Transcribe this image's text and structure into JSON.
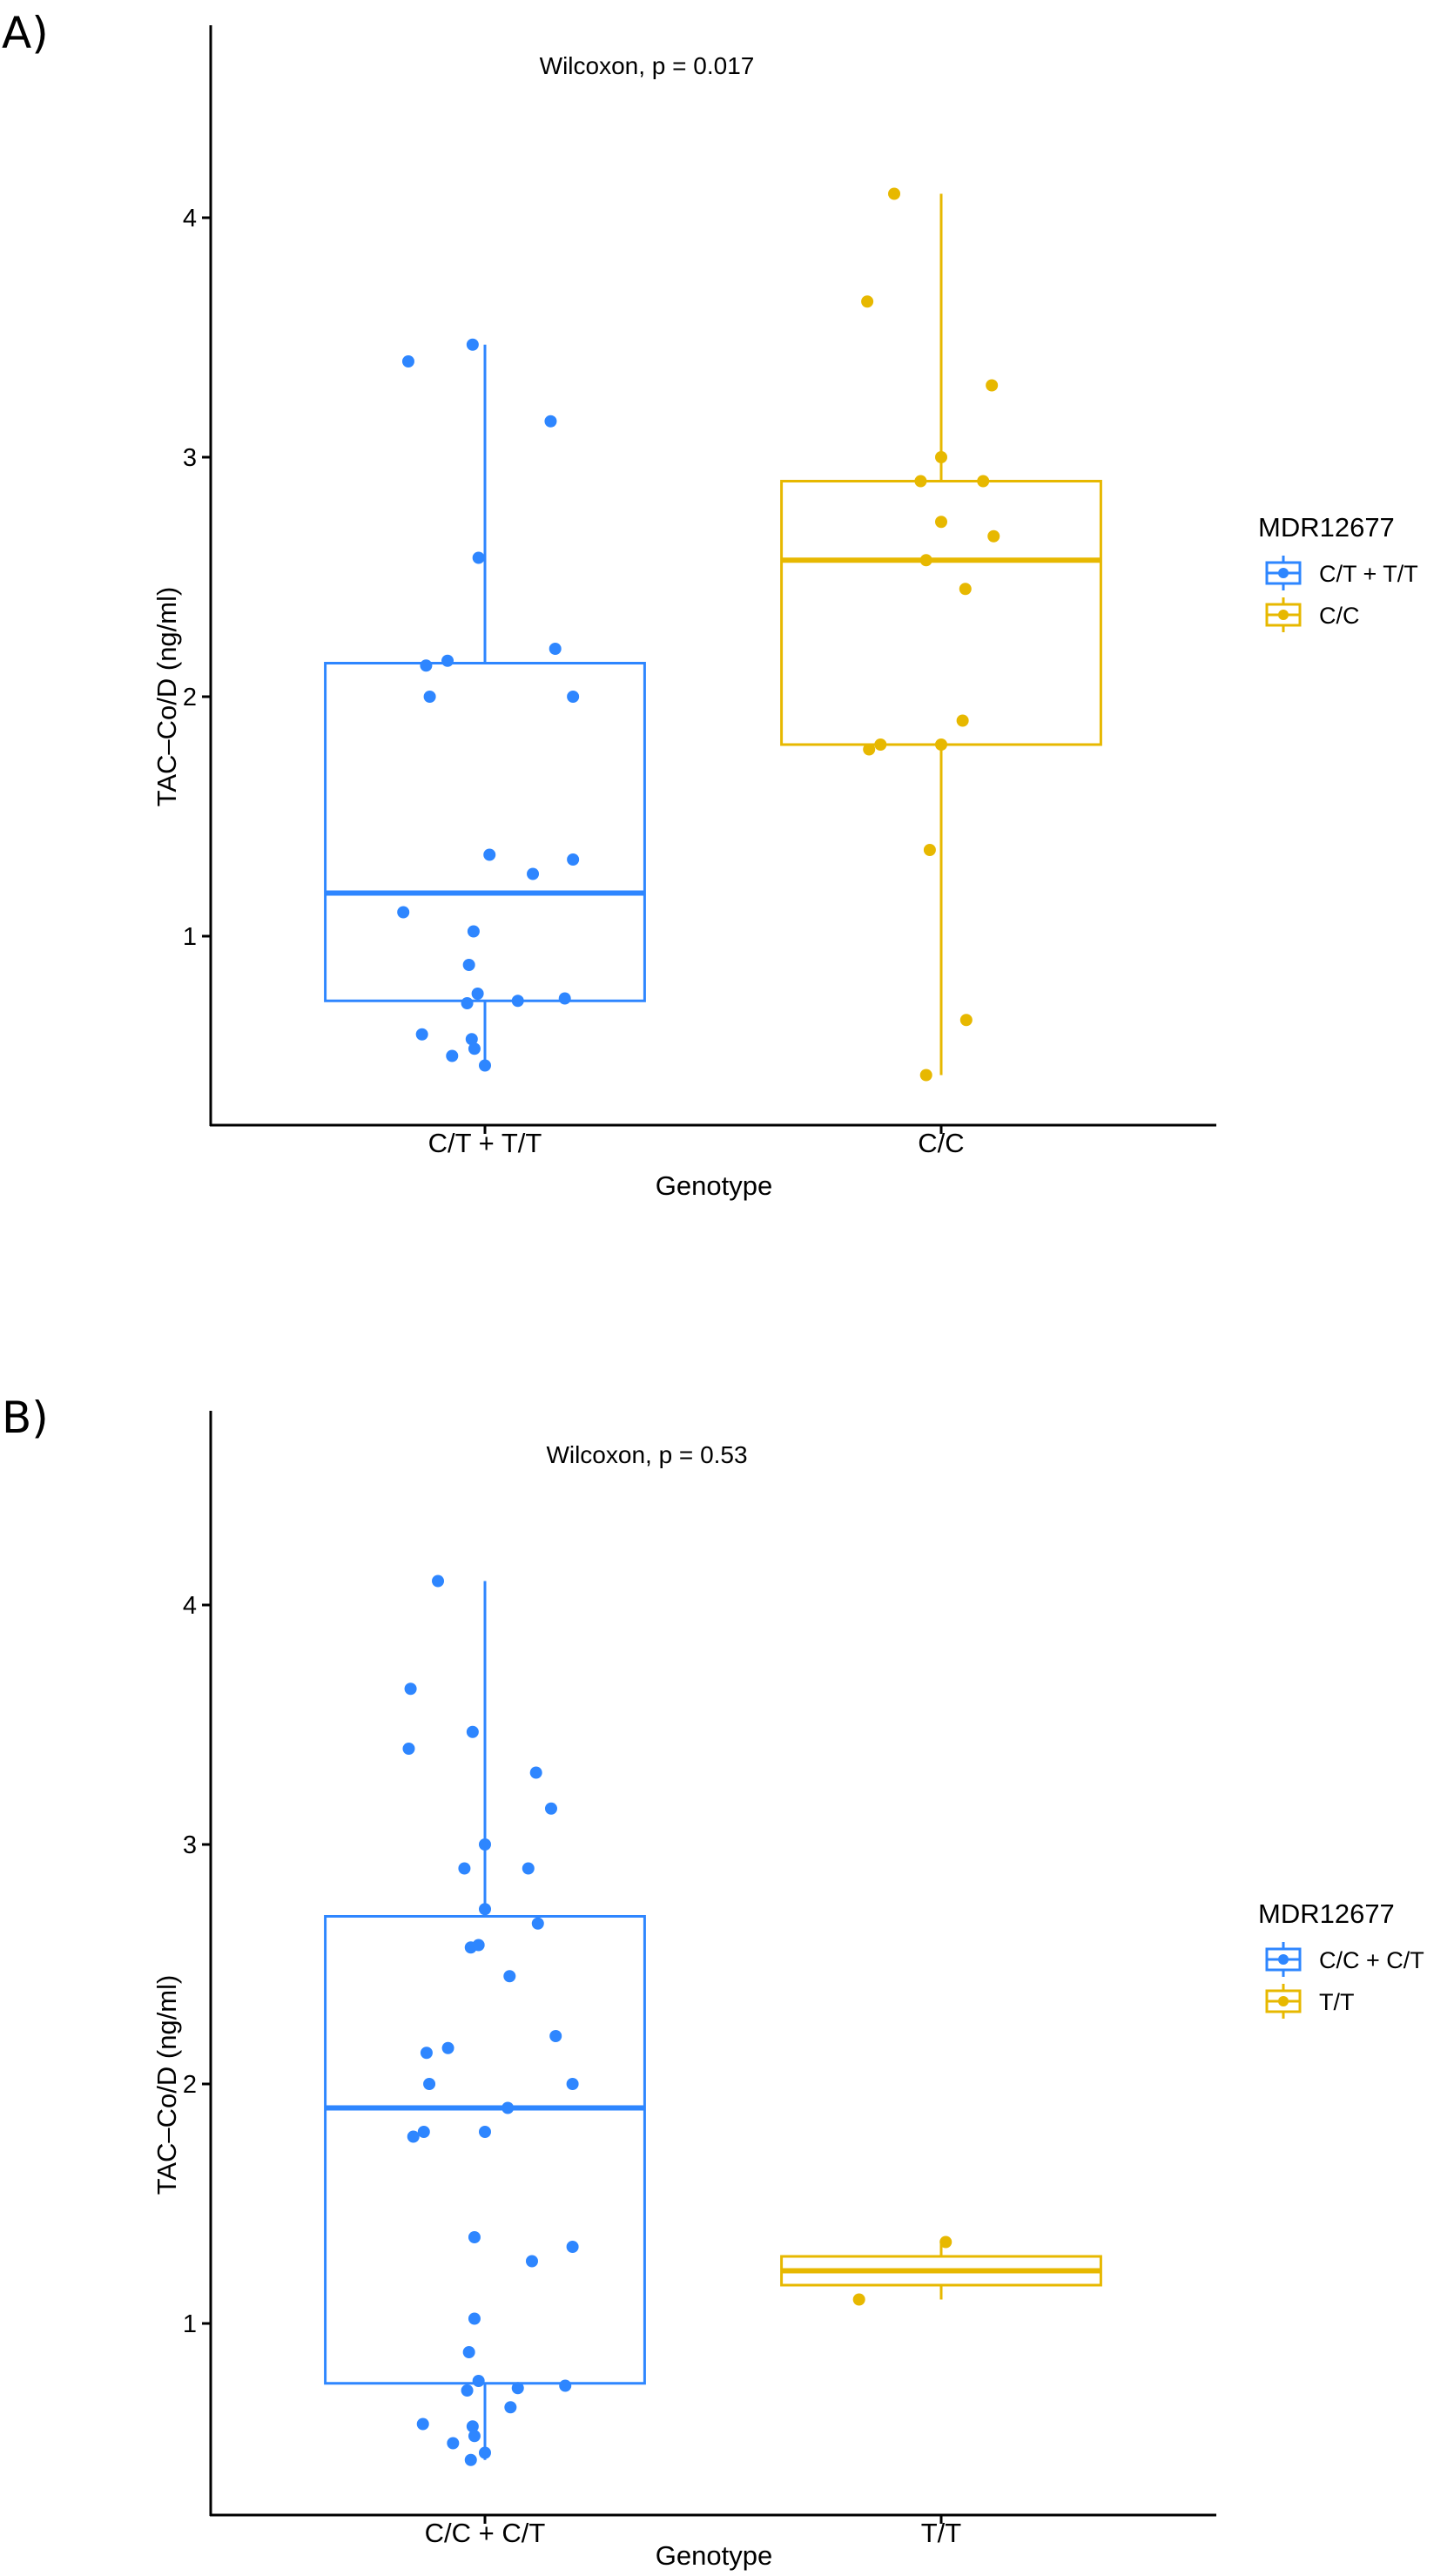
{
  "colors": {
    "blue": "#2E86FF",
    "yellow": "#E7B800",
    "axis": "#000000"
  },
  "chart_data": [
    {
      "type": "box",
      "panel_label": "A)",
      "annotation": "Wilcoxon, p = 0.017",
      "xlabel": "Genotype",
      "ylabel": "TAC–Co/D (ng/ml)",
      "ylim": [
        0.2,
        4.8
      ],
      "yticks": [
        1,
        2,
        3,
        4
      ],
      "grid": false,
      "legend": {
        "title": "MDR12677",
        "position": "right"
      },
      "categories": [
        "C/T + T/T",
        "C/C"
      ],
      "groups": [
        {
          "name": "C/T + T/T",
          "color": "blue",
          "box": {
            "lower_whisker": 0.46,
            "q1": 0.73,
            "median": 1.18,
            "q3": 2.14,
            "upper_whisker": 3.47
          },
          "points": [
            [
              -0.168,
              3.4
            ],
            [
              -0.027,
              3.47
            ],
            [
              0.144,
              3.15
            ],
            [
              -0.014,
              2.58
            ],
            [
              0.154,
              2.2
            ],
            [
              -0.129,
              2.13
            ],
            [
              -0.082,
              2.15
            ],
            [
              -0.121,
              2.0
            ],
            [
              0.193,
              2.0
            ],
            [
              0.01,
              1.34
            ],
            [
              0.105,
              1.26
            ],
            [
              0.193,
              1.32
            ],
            [
              -0.179,
              1.1
            ],
            [
              -0.025,
              1.02
            ],
            [
              -0.035,
              0.88
            ],
            [
              -0.016,
              0.76
            ],
            [
              -0.039,
              0.72
            ],
            [
              0.072,
              0.73
            ],
            [
              0.175,
              0.74
            ],
            [
              -0.138,
              0.59
            ],
            [
              -0.029,
              0.57
            ],
            [
              -0.023,
              0.53
            ],
            [
              -0.072,
              0.5
            ],
            [
              0.0,
              0.46
            ]
          ]
        },
        {
          "name": "C/C",
          "color": "yellow",
          "box": {
            "lower_whisker": 0.42,
            "q1": 1.8,
            "median": 2.57,
            "q3": 2.9,
            "upper_whisker": 4.1
          },
          "points": [
            [
              -0.103,
              4.1
            ],
            [
              -0.162,
              3.65
            ],
            [
              0.111,
              3.3
            ],
            [
              0.0,
              3.0
            ],
            [
              -0.045,
              2.9
            ],
            [
              0.092,
              2.9
            ],
            [
              0.0,
              2.73
            ],
            [
              0.115,
              2.67
            ],
            [
              -0.033,
              2.57
            ],
            [
              0.053,
              2.45
            ],
            [
              0.047,
              1.9
            ],
            [
              -0.133,
              1.8
            ],
            [
              -0.158,
              1.78
            ],
            [
              0.0,
              1.8
            ],
            [
              -0.025,
              1.36
            ],
            [
              0.055,
              0.65
            ],
            [
              -0.033,
              0.42
            ]
          ]
        }
      ]
    },
    {
      "type": "box",
      "panel_label": "B)",
      "annotation": "Wilcoxon, p = 0.53",
      "xlabel": "Genotype",
      "ylabel": "TAC–Co/D  (ng/ml)",
      "ylim": [
        0.2,
        4.8
      ],
      "yticks": [
        1,
        2,
        3,
        4
      ],
      "grid": false,
      "legend": {
        "title": "MDR12677",
        "position": "right"
      },
      "categories": [
        "C/C + C/T",
        "T/T"
      ],
      "groups": [
        {
          "name": "C/C + C/T",
          "color": "blue",
          "box": {
            "lower_whisker": 0.43,
            "q1": 0.75,
            "median": 1.9,
            "q3": 2.7,
            "upper_whisker": 4.1
          },
          "points": [
            [
              -0.103,
              4.1
            ],
            [
              -0.163,
              3.65
            ],
            [
              -0.027,
              3.47
            ],
            [
              -0.167,
              3.4
            ],
            [
              0.112,
              3.3
            ],
            [
              0.145,
              3.15
            ],
            [
              0.0,
              3.0
            ],
            [
              -0.045,
              2.9
            ],
            [
              0.095,
              2.9
            ],
            [
              0.0,
              2.73
            ],
            [
              0.116,
              2.67
            ],
            [
              -0.031,
              2.57
            ],
            [
              -0.014,
              2.58
            ],
            [
              0.054,
              2.45
            ],
            [
              0.155,
              2.2
            ],
            [
              -0.128,
              2.13
            ],
            [
              -0.081,
              2.15
            ],
            [
              -0.122,
              2.0
            ],
            [
              0.192,
              2.0
            ],
            [
              0.05,
              1.9
            ],
            [
              -0.157,
              1.78
            ],
            [
              -0.134,
              1.8
            ],
            [
              0.0,
              1.8
            ],
            [
              -0.023,
              1.36
            ],
            [
              0.103,
              1.26
            ],
            [
              0.192,
              1.32
            ],
            [
              -0.023,
              1.02
            ],
            [
              -0.035,
              0.88
            ],
            [
              -0.014,
              0.76
            ],
            [
              -0.039,
              0.72
            ],
            [
              0.072,
              0.73
            ],
            [
              0.176,
              0.74
            ],
            [
              0.056,
              0.65
            ],
            [
              -0.136,
              0.58
            ],
            [
              -0.027,
              0.57
            ],
            [
              -0.023,
              0.53
            ],
            [
              -0.07,
              0.5
            ],
            [
              -0.031,
              0.43
            ],
            [
              0.0,
              0.46
            ]
          ]
        },
        {
          "name": "T/T",
          "color": "yellow",
          "box": {
            "lower_whisker": 1.1,
            "q1": 1.16,
            "median": 1.22,
            "q3": 1.28,
            "upper_whisker": 1.34
          },
          "points": [
            [
              0.01,
              1.34
            ],
            [
              -0.18,
              1.1
            ]
          ]
        }
      ]
    }
  ]
}
